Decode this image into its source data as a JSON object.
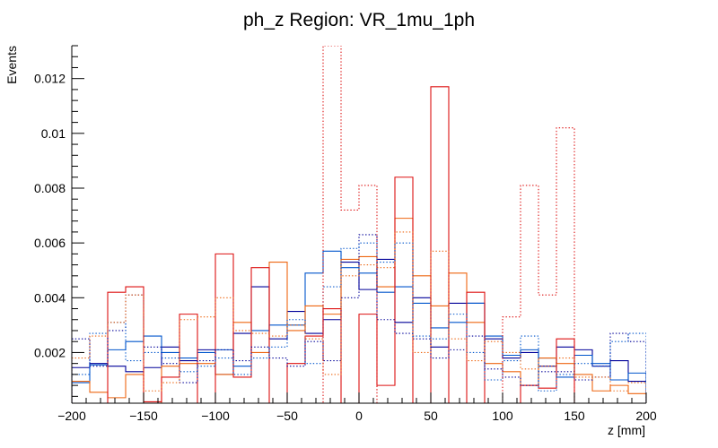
{
  "chart_data": {
    "type": "line",
    "title": "ph_z Region: VR_1mu_1ph",
    "xlabel": "z [mm]",
    "ylabel": "Events",
    "xlim": [
      -200,
      200
    ],
    "ylim": [
      0.00015,
      0.0132
    ],
    "x_ticks": [
      -200,
      -150,
      -100,
      -50,
      0,
      50,
      100,
      150,
      200
    ],
    "x_tick_labels": [
      "−200",
      "−150",
      "−100",
      "−50",
      "0",
      "50",
      "100",
      "150",
      "200"
    ],
    "y_ticks": [
      0.002,
      0.004,
      0.006,
      0.008,
      0.01,
      0.012
    ],
    "y_tick_labels": [
      "0.002",
      "0.004",
      "0.006",
      "0.008",
      "0.01",
      "0.012"
    ],
    "grid": false,
    "legend": "none",
    "bin_edges": [
      -200,
      -187.5,
      -175,
      -162.5,
      -150,
      -137.5,
      -125,
      -112.5,
      -100,
      -87.5,
      -75,
      -62.5,
      -50,
      -37.5,
      -25,
      -12.5,
      0,
      12.5,
      25,
      37.5,
      50,
      62.5,
      75,
      87.5,
      100,
      112.5,
      125,
      137.5,
      150,
      162.5,
      175,
      187.5,
      200
    ],
    "series": [
      {
        "color": "#000099",
        "style": "solid",
        "values": [
          0.00145,
          0.0016,
          0.0015,
          0.0013,
          0.00145,
          0.0022,
          0.0017,
          0.0021,
          0.0012,
          0.0027,
          0.0044,
          0.0025,
          0.0035,
          0.0027,
          0.0032,
          0.0053,
          0.0043,
          0.0054,
          0.0031,
          0.004,
          0.0022,
          0.0038,
          0.0038,
          0.0025,
          0.0018,
          0.002,
          0.0015,
          0.0022,
          0.0021,
          0.0015,
          0.0017,
          0.00095
        ]
      },
      {
        "color": "#0055cc",
        "style": "solid",
        "values": [
          0.0009,
          0.00155,
          0.0021,
          0.0024,
          0.0026,
          0.002,
          0.0018,
          0.002,
          0.0021,
          0.0015,
          0.0028,
          0.003,
          0.003,
          0.0049,
          0.0057,
          0.0051,
          0.0049,
          0.0042,
          0.0044,
          0.0038,
          0.0029,
          0.0031,
          0.0038,
          0.0026,
          0.0019,
          0.0021,
          0.0018,
          0.0011,
          0.0019,
          0.0016,
          0.001,
          0.00125
        ]
      },
      {
        "color": "#ee6611",
        "style": "solid",
        "values": [
          0.00095,
          0.00055,
          0.00035,
          0.0012,
          0.0001,
          0.0015,
          0.0016,
          0.0016,
          0.0012,
          0.0031,
          0.002,
          0.0053,
          0.0028,
          0.0037,
          0.0034,
          0.0054,
          0.0055,
          0.0044,
          0.0069,
          0.0048,
          0.0037,
          0.0049,
          0.0031,
          0.0016,
          0.0013,
          0.0008,
          0.0018,
          0.0016,
          0.0012,
          0.0006,
          0.0008,
          0.0005
        ]
      },
      {
        "color": "#dd1111",
        "style": "solid",
        "values": [
          0,
          0.0001,
          0.0042,
          0.0044,
          0.0002,
          0.0011,
          0.0034,
          0.0001,
          0.0056,
          0.0011,
          0.0051,
          0.0001,
          0.0016,
          0.0026,
          0.0036,
          0.0001,
          0.0034,
          0.0008,
          0.0084,
          0.0001,
          0.0117,
          0.0001,
          0.0042,
          0.0001,
          0.0001,
          0.0008,
          0.0007,
          0.0025,
          0.0001,
          0.0001,
          0.0001,
          0.0001
        ]
      },
      {
        "color": "#000099",
        "style": "dotted",
        "values": [
          0.0025,
          0.0015,
          0.0028,
          0.0041,
          0.0022,
          0.0016,
          0.0009,
          0.0017,
          0.0021,
          0.0017,
          0.0022,
          0.0018,
          0.0015,
          0.0024,
          0.0017,
          0.004,
          0.0063,
          0.0032,
          0.0027,
          0.0025,
          0.0018,
          0.0021,
          0.0026,
          0.0014,
          0.0011,
          0.0008,
          0.0013,
          0.0013,
          0.001,
          0.0011,
          0.0027,
          0.0024
        ]
      },
      {
        "color": "#0055cc",
        "style": "dotted",
        "values": [
          0.0012,
          0.0027,
          0.0031,
          0.0017,
          0.002,
          0.0018,
          0.0013,
          0.0015,
          0.0018,
          0.0012,
          0.0018,
          0.0022,
          0.0032,
          0.0016,
          0.0044,
          0.0058,
          0.006,
          0.0053,
          0.006,
          0.0026,
          0.0025,
          0.0034,
          0.002,
          0.001,
          0.0017,
          0.0026,
          0.0006,
          0.0012,
          0.0016,
          0.0015,
          0.0024,
          0.0027
        ]
      },
      {
        "color": "#ee6611",
        "style": "dotted",
        "values": [
          0.0018,
          0.0026,
          0.0031,
          0.0041,
          0.0006,
          0.0009,
          0.0032,
          0.0033,
          0.004,
          0.0028,
          0.0027,
          0.0026,
          0.003,
          0.0025,
          0.0012,
          0.0048,
          0.0052,
          0.0051,
          0.0064,
          0.002,
          0.0057,
          0.0025,
          0.0017,
          0.0024,
          0.002,
          0.0014,
          0.0015,
          0.0018,
          0.0011,
          0.0011,
          0.0006,
          0.0009
        ]
      },
      {
        "color": "#dd1111",
        "style": "dotted",
        "values": [
          0.0001,
          0.0001,
          0.0001,
          0.0001,
          0.0001,
          0.0001,
          0.0001,
          0.0001,
          0.0001,
          0.0001,
          0.0001,
          0.0001,
          0.0001,
          0.0001,
          0.014,
          0.0072,
          0.0081,
          0.0001,
          0.0001,
          0.0001,
          0.0001,
          0.0001,
          0.0001,
          0.0001,
          0.0033,
          0.0081,
          0.0041,
          0.0102,
          0.0001,
          0.0001,
          0.0001,
          0.0001
        ]
      }
    ]
  }
}
